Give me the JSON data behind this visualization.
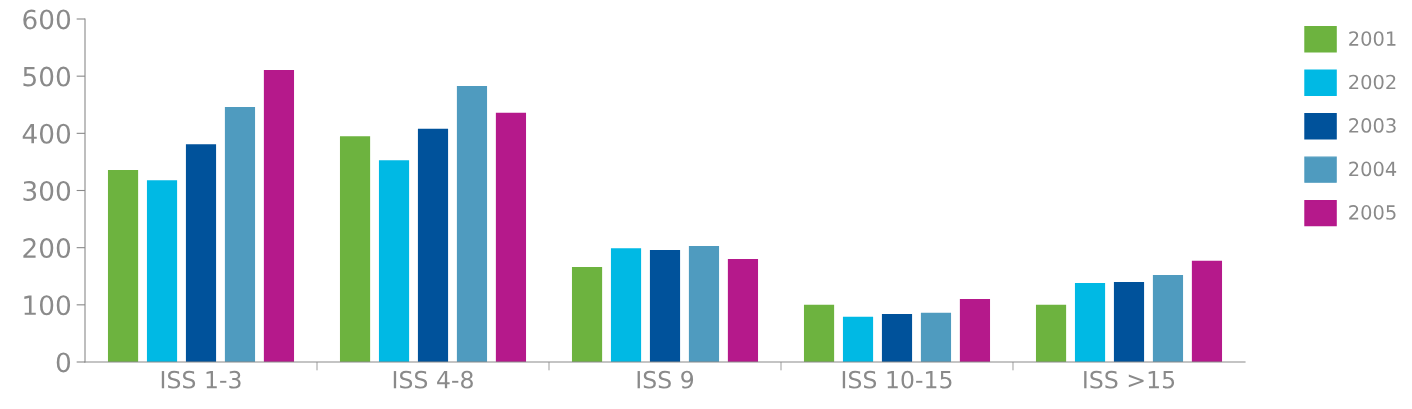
{
  "chart_data": {
    "type": "bar",
    "categories": [
      "ISS 1-3",
      "ISS 4-8",
      "ISS 9",
      "ISS 10-15",
      "ISS >15"
    ],
    "series": [
      {
        "name": "2001",
        "color": "#6db33f",
        "values": [
          336,
          395,
          166,
          100,
          100
        ]
      },
      {
        "name": "2002",
        "color": "#00b9e4",
        "values": [
          318,
          353,
          199,
          79,
          138
        ]
      },
      {
        "name": "2003",
        "color": "#00529b",
        "values": [
          381,
          408,
          196,
          84,
          140
        ]
      },
      {
        "name": "2004",
        "color": "#4f9bbf",
        "values": [
          446,
          483,
          203,
          86,
          152
        ]
      },
      {
        "name": "2005",
        "color": "#b5198b",
        "values": [
          511,
          436,
          180,
          110,
          177
        ]
      }
    ],
    "ylim": [
      0,
      600
    ],
    "yticks": [
      0,
      100,
      200,
      300,
      400,
      500,
      600
    ],
    "grid": false,
    "legend": "right"
  }
}
